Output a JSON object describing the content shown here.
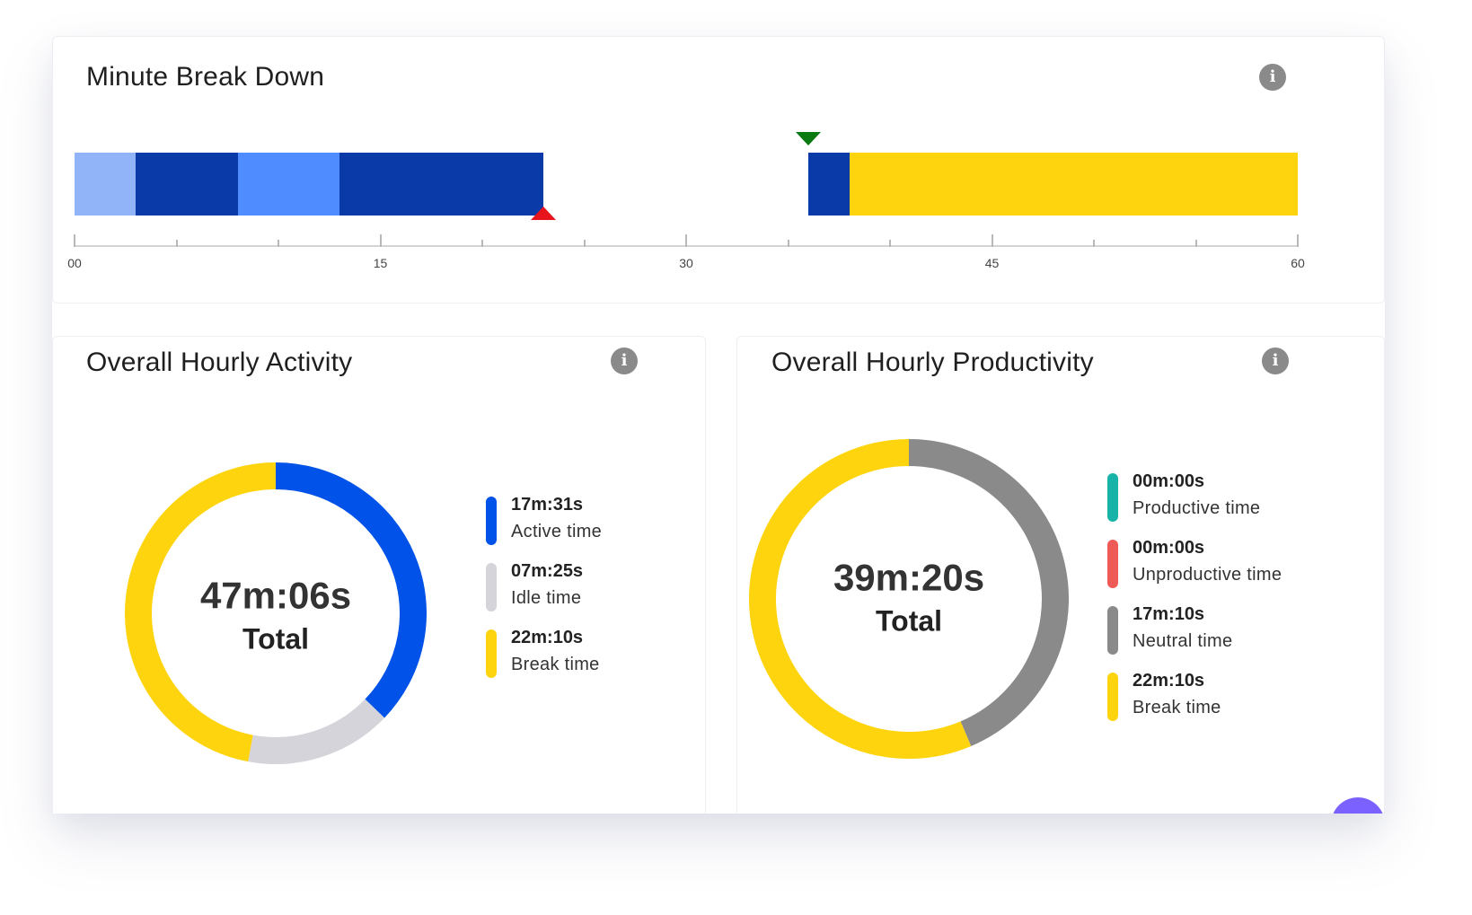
{
  "minute_breakdown": {
    "title": "Minute Break Down",
    "info_icon": "info-icon",
    "segments": [
      {
        "start": 0,
        "end": 3,
        "color": "#90b4f7",
        "kind": "active-light"
      },
      {
        "start": 3,
        "end": 8,
        "color": "#0a3aa8",
        "kind": "active"
      },
      {
        "start": 8,
        "end": 13,
        "color": "#4f8cff",
        "kind": "active-mid"
      },
      {
        "start": 13,
        "end": 18,
        "color": "#0a3aa8",
        "kind": "active"
      },
      {
        "start": 18,
        "end": 23,
        "color": "#0a3aa8",
        "kind": "active"
      },
      {
        "start": 36,
        "end": 38,
        "color": "#0a3aa8",
        "kind": "active"
      },
      {
        "start": 38,
        "end": 60,
        "color": "#fdd40e",
        "kind": "break"
      }
    ],
    "markers": [
      {
        "type": "end",
        "minute": 23,
        "color": "#e8141c"
      },
      {
        "type": "start",
        "minute": 36,
        "color": "#0a7a13"
      }
    ],
    "axis_labels": [
      "00",
      "15",
      "30",
      "45",
      "60"
    ],
    "axis_min": 0,
    "axis_max": 60
  },
  "hourly_activity": {
    "title": "Overall Hourly Activity",
    "info_icon": "info-icon",
    "total_value": "47m:06s",
    "total_label": "Total",
    "legend": [
      {
        "value": "17m:31s",
        "label": "Active time",
        "color": "#0052e8",
        "seconds": 1051
      },
      {
        "value": "07m:25s",
        "label": "Idle time",
        "color": "#d4d4da",
        "seconds": 445
      },
      {
        "value": "22m:10s",
        "label": "Break time",
        "color": "#fdd40e",
        "seconds": 1330
      }
    ]
  },
  "hourly_productivity": {
    "title": "Overall Hourly Productivity",
    "info_icon": "info-icon",
    "total_value": "39m:20s",
    "total_label": "Total",
    "legend": [
      {
        "value": "00m:00s",
        "label": "Productive time",
        "color": "#17b3a8",
        "seconds": 0
      },
      {
        "value": "00m:00s",
        "label": "Unproductive time",
        "color": "#ee5a55",
        "seconds": 0
      },
      {
        "value": "17m:10s",
        "label": "Neutral time",
        "color": "#8a8a8a",
        "seconds": 1030
      },
      {
        "value": "22m:10s",
        "label": "Break time",
        "color": "#fdd40e",
        "seconds": 1330
      }
    ]
  }
}
